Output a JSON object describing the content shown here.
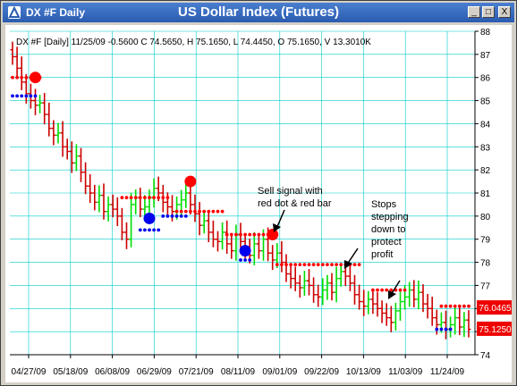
{
  "window": {
    "title": "DX #F Daily",
    "chart_title": "US Dollar Index (Futures)",
    "buttons": [
      "_",
      "□",
      "X"
    ]
  },
  "info_line": "DX #F [Daily] 11/25/09  -0.5600 C 74.5650, H 75.1650, L 74.4450, O 75.1650, V 13.3010K",
  "annotations": [
    {
      "text": "Sell signal with red dot & red bar"
    },
    {
      "text": "Stops stepping down to protect profit"
    }
  ],
  "colors": {
    "up": "#00dd00",
    "down": "#cc0000",
    "stop_short": "#ff0000",
    "stop_long": "#0000ee",
    "grid": "#00cccc",
    "price_box": "#ee0000"
  },
  "chart_data": {
    "type": "bar",
    "title": "US Dollar Index (Futures)",
    "y_ticks": [
      88,
      87,
      86,
      85,
      84,
      83,
      82,
      81,
      80,
      79,
      78,
      77,
      76,
      75,
      74
    ],
    "x_ticks": [
      "04/27/09",
      "05/18/09",
      "06/08/09",
      "06/29/09",
      "07/21/09",
      "08/11/09",
      "09/01/09",
      "09/22/09",
      "10/13/09",
      "11/03/09",
      "11/24/09"
    ],
    "ylim": [
      74,
      88
    ],
    "price_labels": [
      {
        "value": "76.0465"
      },
      {
        "value": "75.1250"
      }
    ],
    "closes": [
      86.9,
      86.4,
      85.8,
      85.3,
      85.0,
      84.8,
      84.9,
      84.4,
      83.8,
      83.5,
      83.6,
      83.0,
      82.8,
      82.3,
      82.6,
      81.9,
      81.3,
      81.0,
      80.6,
      80.9,
      80.2,
      80.5,
      80.3,
      80.0,
      79.3,
      79.0,
      80.5,
      80.8,
      80.3,
      80.4,
      80.8,
      81.2,
      81.0,
      80.6,
      80.4,
      80.2,
      80.5,
      80.7,
      81.0,
      80.5,
      80.1,
      79.6,
      79.8,
      79.3,
      79.0,
      78.9,
      79.3,
      78.8,
      78.5,
      79.2,
      78.9,
      78.6,
      78.3,
      78.8,
      78.5,
      79.0,
      78.4,
      78.1,
      78.4,
      78.0,
      77.5,
      77.3,
      77.1,
      76.9,
      77.2,
      77.0,
      76.6,
      76.5,
      76.8,
      77.1,
      76.7,
      77.3,
      77.6,
      77.4,
      77.1,
      76.6,
      76.3,
      76.1,
      76.4,
      76.2,
      76.0,
      75.8,
      75.6,
      75.4,
      75.9,
      76.3,
      76.5,
      76.8,
      76.4,
      76.7,
      76.2,
      76.0,
      75.6,
      75.3,
      75.4,
      75.1,
      75.3,
      75.6,
      75.2,
      75.5,
      75.1
    ],
    "short_stop_steps": [
      {
        "from": 0,
        "to": 6,
        "value": 86.0
      },
      {
        "from": 24,
        "to": 34,
        "value": 80.8
      },
      {
        "from": 36,
        "to": 46,
        "value": 80.2
      },
      {
        "from": 47,
        "to": 56,
        "value": 79.2
      },
      {
        "from": 58,
        "to": 76,
        "value": 77.9
      },
      {
        "from": 79,
        "to": 86,
        "value": 76.8
      },
      {
        "from": 94,
        "to": 100,
        "value": 76.1
      }
    ],
    "long_stop_steps": [
      {
        "from": 0,
        "to": 5,
        "value": 85.2
      },
      {
        "from": 28,
        "to": 32,
        "value": 79.4
      },
      {
        "from": 33,
        "to": 38,
        "value": 80.0
      },
      {
        "from": 50,
        "to": 52,
        "value": 78.1
      },
      {
        "from": 93,
        "to": 96,
        "value": 75.1
      }
    ],
    "signal_dots": [
      {
        "index": 5,
        "value": 86.0,
        "kind": "sell"
      },
      {
        "index": 30,
        "value": 79.9,
        "kind": "buy"
      },
      {
        "index": 39,
        "value": 81.5,
        "kind": "sell"
      },
      {
        "index": 51,
        "value": 78.5,
        "kind": "buy"
      },
      {
        "index": 57,
        "value": 79.2,
        "kind": "sell"
      }
    ]
  }
}
